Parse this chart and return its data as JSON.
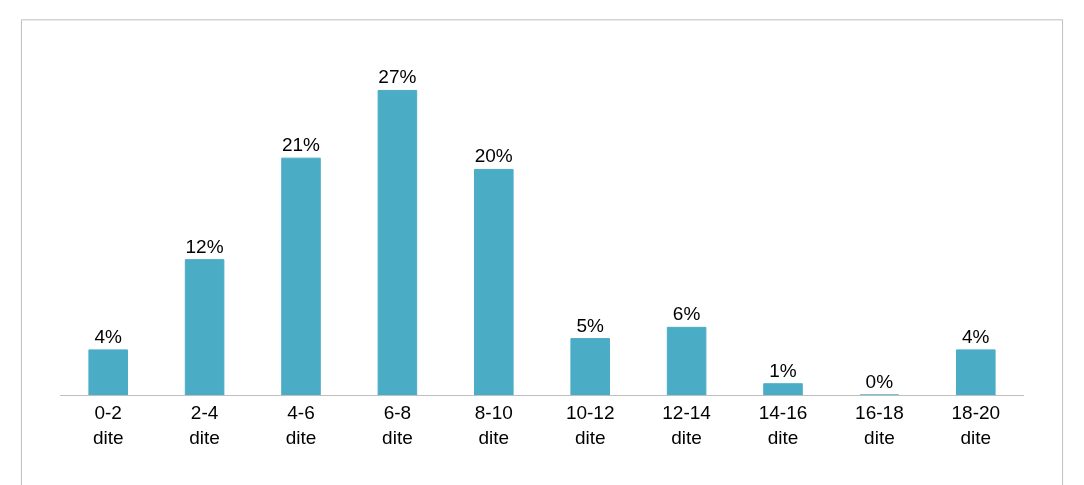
{
  "chart_data": {
    "type": "bar",
    "categories": [
      "0-2 dite",
      "2-4 dite",
      "4-6 dite",
      "6-8 dite",
      "8-10 dite",
      "10-12 dite",
      "12-14 dite",
      "14-16 dite",
      "16-18 dite",
      "18-20 dite"
    ],
    "values": [
      4,
      12,
      21,
      27,
      20,
      5,
      6,
      1,
      0,
      4
    ],
    "color": "#4bacc6",
    "value_labels": [
      "4%",
      "12%",
      "21%",
      "27%",
      "20%",
      "5%",
      "6%",
      "1%",
      "0%",
      "4%"
    ],
    "legend": false
  }
}
